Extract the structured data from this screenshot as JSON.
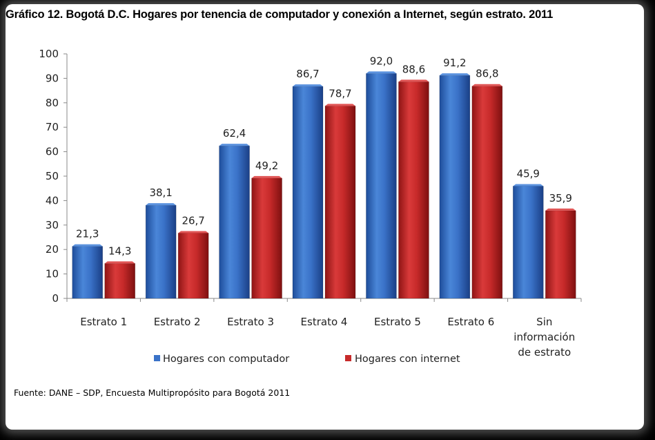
{
  "title": "Gráfico 12.  Bogotá D.C. Hogares por tenencia de computador y conexión a Internet, según estrato. 2011",
  "source": "Fuente: DANE – SDP, Encuesta Multipropósito para Bogotá 2011",
  "chart_data": {
    "type": "bar",
    "title": "Gráfico 12.  Bogotá D.C. Hogares por tenencia de computador y conexión a Internet, según estrato. 2011",
    "xlabel": "",
    "ylabel": "",
    "ylim": [
      0,
      100
    ],
    "yticks": [
      0,
      10,
      20,
      30,
      40,
      50,
      60,
      70,
      80,
      90,
      100
    ],
    "grid": false,
    "legend_position": "bottom",
    "categories": [
      [
        "Estrato 1"
      ],
      [
        "Estrato 2"
      ],
      [
        "Estrato 3"
      ],
      [
        "Estrato 4"
      ],
      [
        "Estrato 5"
      ],
      [
        "Estrato 6"
      ],
      [
        "Sin",
        "información",
        "de estrato"
      ]
    ],
    "series": [
      {
        "name": "Hogares con computador",
        "color": "#3a72c8",
        "values": [
          21.3,
          38.1,
          62.4,
          86.7,
          92.0,
          91.2,
          45.9
        ],
        "labels": [
          "21,3",
          "38,1",
          "62,4",
          "86,7",
          "92,0",
          "91,2",
          "45,9"
        ]
      },
      {
        "name": "Hogares con internet",
        "color": "#c72a2a",
        "values": [
          14.3,
          26.7,
          49.2,
          78.7,
          88.6,
          86.8,
          35.9
        ],
        "labels": [
          "14,3",
          "26,7",
          "49,2",
          "78,7",
          "88,6",
          "86,8",
          "35,9"
        ]
      }
    ]
  }
}
